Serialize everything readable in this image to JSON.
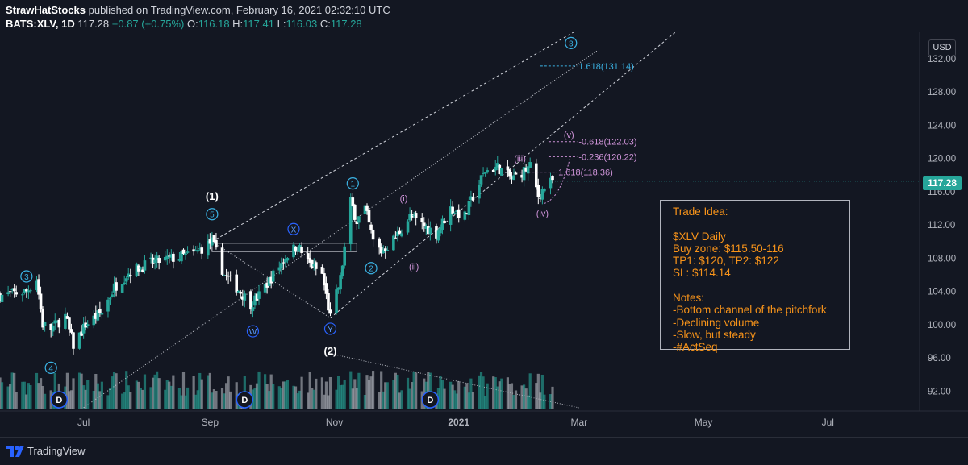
{
  "header": {
    "author": "StrawHatStocks",
    "published": "published on TradingView.com, February 16, 2021 02:32:10 UTC",
    "symbol": "BATS:XLV, 1D",
    "last": "117.28",
    "change": "+0.87 (+0.75%)",
    "o_label": "O:",
    "o_val": "116.18",
    "h_label": "H:",
    "h_val": "117.41",
    "l_label": "L:",
    "l_val": "116.03",
    "c_label": "C:",
    "c_val": "117.28"
  },
  "price_axis": {
    "currency": "USD",
    "current_price": "117.28"
  },
  "trade_idea": "Trade Idea:\n\n$XLV Daily\nBuy zone: $115.50-116\nTP1: $120, TP2: $122\nSL: $114.14\n\nNotes:\n-Bottom channel of the pitchfork\n-Declining volume\n-Slow, but steady\n-#ActSeq",
  "footer": {
    "brand": "TradingView"
  },
  "colors": {
    "up": "#26a69a",
    "down": "#ffffff",
    "cyan": "#3bb3e4",
    "blue": "#2962ff",
    "magenta": "#ce93d8",
    "orange": "#f7931a",
    "background": "#131722"
  },
  "chart_data": {
    "type": "candlestick",
    "y_ticks": [
      92,
      96,
      100,
      104,
      108,
      112,
      116,
      120,
      124,
      128,
      132
    ],
    "ylim": [
      89.6,
      135.2
    ],
    "x_ticks": [
      {
        "label": "Jul",
        "date": "2020-07-01"
      },
      {
        "label": "Sep",
        "date": "2020-09-01"
      },
      {
        "label": "Nov",
        "date": "2020-11-01"
      },
      {
        "label": "2021",
        "date": "2021-01-01"
      },
      {
        "label": "Mar",
        "date": "2021-03-01"
      },
      {
        "label": "May",
        "date": "2021-05-01"
      },
      {
        "label": "Jul",
        "date": "2021-07-01"
      }
    ],
    "xlim": [
      "2020-05-21",
      "2021-08-15"
    ],
    "close_path": [
      [
        "2020-05-21",
        103.5
      ],
      [
        "2020-06-03",
        104.0
      ],
      [
        "2020-06-08",
        105.5
      ],
      [
        "2020-06-11",
        100.0
      ],
      [
        "2020-06-15",
        99.5
      ],
      [
        "2020-06-22",
        101.0
      ],
      [
        "2020-06-26",
        97.5
      ],
      [
        "2020-07-02",
        100.0
      ],
      [
        "2020-07-10",
        101.5
      ],
      [
        "2020-07-16",
        104.5
      ],
      [
        "2020-07-24",
        106.5
      ],
      [
        "2020-08-04",
        107.5
      ],
      [
        "2020-08-14",
        108.0
      ],
      [
        "2020-08-24",
        108.5
      ],
      [
        "2020-09-02",
        110.0
      ],
      [
        "2020-09-08",
        106.0
      ],
      [
        "2020-09-14",
        104.5
      ],
      [
        "2020-09-21",
        102.5
      ],
      [
        "2020-09-25",
        103.5
      ],
      [
        "2020-10-02",
        106.0
      ],
      [
        "2020-10-09",
        108.5
      ],
      [
        "2020-10-14",
        109.5
      ],
      [
        "2020-10-19",
        107.5
      ],
      [
        "2020-10-26",
        106.0
      ],
      [
        "2020-10-30",
        100.8
      ],
      [
        "2020-11-04",
        105.5
      ],
      [
        "2020-11-09",
        114.8
      ],
      [
        "2020-11-12",
        112.5
      ],
      [
        "2020-11-16",
        114.0
      ],
      [
        "2020-11-20",
        110.0
      ],
      [
        "2020-11-24",
        108.8
      ],
      [
        "2020-12-01",
        110.5
      ],
      [
        "2020-12-08",
        113.0
      ],
      [
        "2020-12-14",
        112.0
      ],
      [
        "2020-12-21",
        111.0
      ],
      [
        "2020-12-28",
        114.0
      ],
      [
        "2021-01-04",
        113.0
      ],
      [
        "2021-01-08",
        115.5
      ],
      [
        "2021-01-14",
        118.5
      ],
      [
        "2021-01-20",
        119.0
      ],
      [
        "2021-01-27",
        117.5
      ],
      [
        "2021-02-02",
        118.5
      ],
      [
        "2021-02-05",
        119.0
      ],
      [
        "2021-02-09",
        115.5
      ],
      [
        "2021-02-12",
        116.5
      ],
      [
        "2021-02-16",
        117.28
      ]
    ],
    "volume_scale": "relative",
    "channel_lines": [
      {
        "from": [
          "2020-07-01",
          90.0
        ],
        "to": [
          "2021-03-10",
          133.0
        ]
      },
      {
        "from": [
          "2020-09-02",
          110.0
        ],
        "to": [
          "2021-04-08",
          141.0
        ]
      },
      {
        "from": [
          "2020-10-30",
          100.8
        ],
        "to": [
          "2021-05-01",
          138.0
        ]
      }
    ],
    "fib_levels": [
      {
        "label": "1.618(131.14)",
        "value": 131.14
      },
      {
        "label": "-0.618(122.03)",
        "value": 122.03
      },
      {
        "label": "-0.236(120.22)",
        "value": 120.22
      },
      {
        "label": "1.618(118.36)",
        "value": 118.36
      }
    ],
    "wave_labels": [
      {
        "text": "(1)",
        "date": "2020-09-02",
        "price": 115.5,
        "kind": "plain"
      },
      {
        "text": "5",
        "date": "2020-09-02",
        "price": 113.3,
        "kind": "circle-cyan"
      },
      {
        "text": "3",
        "date": "2020-06-03",
        "price": 105.8,
        "kind": "circle-cyan"
      },
      {
        "text": "4",
        "date": "2020-06-15",
        "price": 94.8,
        "kind": "circle-cyan"
      },
      {
        "text": "W",
        "date": "2020-09-22",
        "price": 99.2,
        "kind": "circle-blue"
      },
      {
        "text": "X",
        "date": "2020-10-12",
        "price": 111.5,
        "kind": "circle-blue"
      },
      {
        "text": "Y",
        "date": "2020-10-30",
        "price": 99.5,
        "kind": "circle-blue"
      },
      {
        "text": "(2)",
        "date": "2020-10-30",
        "price": 96.9,
        "kind": "plain"
      },
      {
        "text": "1",
        "date": "2020-11-10",
        "price": 117.0,
        "kind": "circle-cyan"
      },
      {
        "text": "2",
        "date": "2020-11-19",
        "price": 106.8,
        "kind": "circle-cyan"
      },
      {
        "text": "3",
        "date": "2021-02-25",
        "price": 133.9,
        "kind": "circle-cyan"
      },
      {
        "text": "(i)",
        "date": "2020-12-05",
        "price": 115.2,
        "kind": "magenta"
      },
      {
        "text": "(ii)",
        "date": "2020-12-10",
        "price": 107.0,
        "kind": "magenta"
      },
      {
        "text": "(iii)",
        "date": "2021-01-31",
        "price": 120.0,
        "kind": "magenta"
      },
      {
        "text": "(iv)",
        "date": "2021-02-11",
        "price": 113.4,
        "kind": "magenta"
      },
      {
        "text": "(v)",
        "date": "2021-02-24",
        "price": 122.9,
        "kind": "magenta"
      }
    ],
    "dividends": [
      {
        "text": "D",
        "date": "2020-06-19"
      },
      {
        "text": "D",
        "date": "2020-09-18"
      },
      {
        "text": "D",
        "date": "2020-12-18"
      }
    ]
  }
}
